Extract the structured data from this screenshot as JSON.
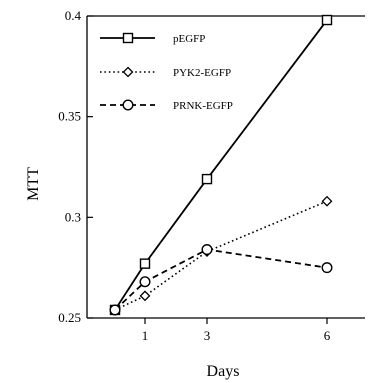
{
  "chart_data": {
    "type": "line",
    "categories": [
      "1",
      "3",
      "6"
    ],
    "x": [
      0,
      1,
      3,
      6
    ],
    "xlabel": "Days",
    "ylabel": "MTT",
    "ylim": [
      0.25,
      0.4
    ],
    "yticks": [
      "0.25",
      "0.3",
      "0.35",
      "0.4"
    ],
    "grid": false,
    "legend_position": "top-left",
    "series": [
      {
        "name": "pEGFP",
        "marker": "square",
        "line": "solid",
        "values": [
          0.254,
          0.277,
          0.319,
          0.398
        ]
      },
      {
        "name": "PYK2-EGFP",
        "marker": "diamond",
        "line": "dotted",
        "values": [
          0.254,
          0.261,
          0.283,
          0.308
        ]
      },
      {
        "name": "PRNK-EGFP",
        "marker": "circle",
        "line": "dashed",
        "values": [
          0.254,
          0.268,
          0.284,
          0.275
        ]
      }
    ]
  }
}
